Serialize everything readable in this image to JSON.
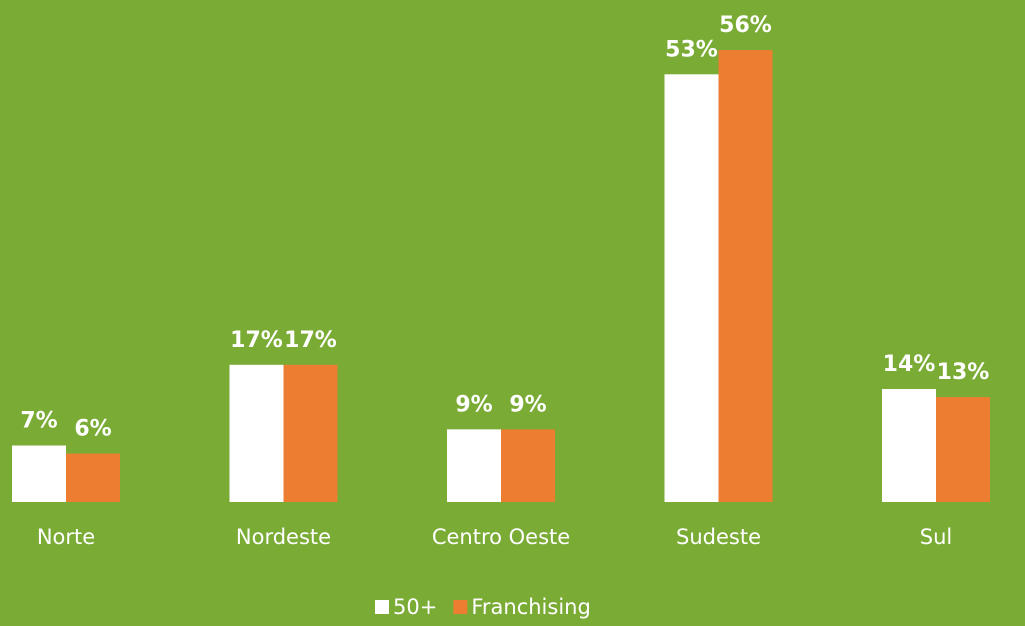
{
  "chart_data": {
    "type": "bar",
    "categories": [
      "Norte",
      "Nordeste",
      "Centro Oeste",
      "Sudeste",
      "Sul"
    ],
    "series": [
      {
        "name": "50+",
        "color": "#ffffff",
        "values": [
          7,
          17,
          9,
          53,
          14
        ],
        "value_labels": [
          "7%",
          "17%",
          "9%",
          "53%",
          "14%"
        ]
      },
      {
        "name": "Franchising",
        "color": "#ed7d31",
        "values": [
          6,
          17,
          9,
          56,
          13
        ],
        "value_labels": [
          "6%",
          "17%",
          "9%",
          "56%",
          "13%"
        ]
      }
    ],
    "background": "#7aab35"
  }
}
